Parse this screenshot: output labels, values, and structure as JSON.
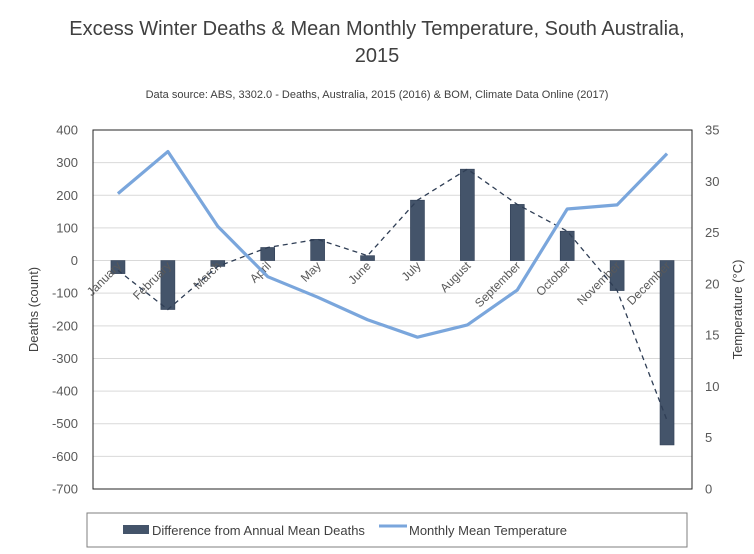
{
  "chart_data": {
    "type": "bar+line",
    "title": "Excess Winter Deaths & Mean Monthly Temperature, South Australia, 2015",
    "subtitle": "Data source: ABS, 3302.0 - Deaths, Australia, 2015 (2016) & BOM, Climate Data Online (2017)",
    "categories": [
      "January",
      "February",
      "March",
      "April",
      "May",
      "June",
      "July",
      "August",
      "September",
      "October",
      "November",
      "December"
    ],
    "ylabel": "Deaths (count)",
    "y2label": "Temperature (°C)",
    "ylim": [
      -700,
      400
    ],
    "y2lim": [
      0,
      35
    ],
    "yticks": [
      "400",
      "300",
      "200",
      "100",
      "0",
      "-100",
      "-200",
      "-300",
      "-400",
      "-500",
      "-600",
      "-700"
    ],
    "y2ticks": [
      "35",
      "30",
      "25",
      "20",
      "15",
      "10",
      "5",
      "0"
    ],
    "grid": true,
    "legend_position": "bottom",
    "series": [
      {
        "name": "Difference from Annual Mean Deaths",
        "type": "bar",
        "axis": "left",
        "color": "#44546a",
        "values": [
          -40,
          -150,
          -18,
          40,
          65,
          15,
          185,
          280,
          172,
          90,
          -92,
          -565
        ]
      },
      {
        "type": "line",
        "style": "dashed",
        "axis": "left",
        "color": "#2f3e55",
        "values": [
          -30,
          -150,
          -18,
          40,
          65,
          15,
          185,
          280,
          172,
          90,
          -92,
          -490
        ]
      },
      {
        "name": "Monthly Mean Temperature",
        "type": "line",
        "axis": "right",
        "color": "#7aa6dc",
        "values": [
          28.8,
          32.9,
          25.6,
          20.7,
          18.7,
          16.5,
          14.8,
          16.0,
          19.4,
          27.3,
          27.7,
          32.7
        ]
      }
    ]
  }
}
